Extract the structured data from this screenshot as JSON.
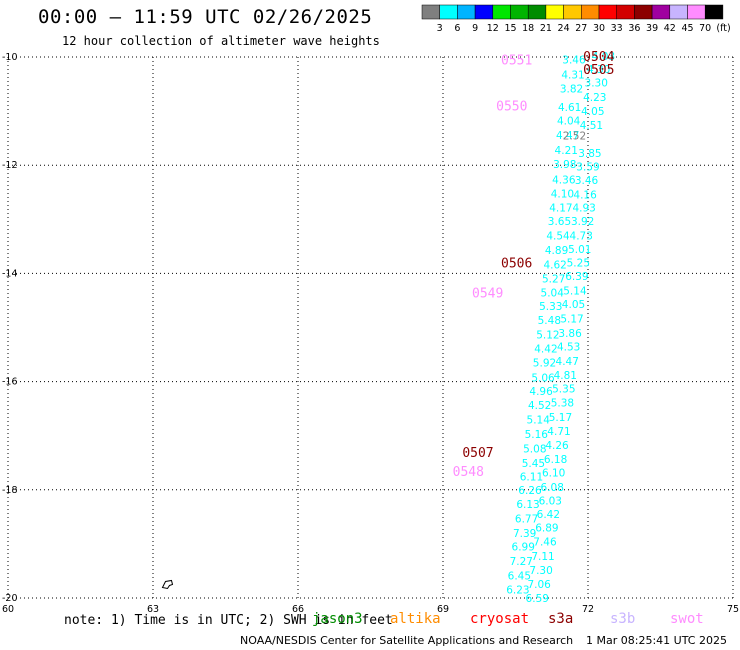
{
  "header": {
    "title": "00:00 – 11:59 UTC 02/26/2025",
    "subtitle": "12 hour collection of altimeter wave heights"
  },
  "colorbar": {
    "ticks": [
      "3",
      "6",
      "9",
      "12",
      "15",
      "18",
      "21",
      "24",
      "27",
      "30",
      "33",
      "36",
      "39",
      "42",
      "45",
      "70"
    ],
    "unit": "(ft)",
    "colors": [
      "#7f7f7f",
      "#00ffff",
      "#00b4ff",
      "#0000ff",
      "#00e600",
      "#00b400",
      "#008c00",
      "#ffff00",
      "#ffc800",
      "#ff8c00",
      "#ff0000",
      "#d20000",
      "#8c0000",
      "#a000a0",
      "#c8b4ff",
      "#ff8cff",
      "#000000"
    ]
  },
  "map": {
    "lon_ticks": [
      "60",
      "63",
      "66",
      "69",
      "72",
      "75"
    ],
    "lat_ticks": [
      "-10",
      "-12",
      "-14",
      "-16",
      "-18",
      "-20"
    ],
    "lon_range": [
      60,
      75
    ],
    "lat_range": [
      -20,
      -10
    ],
    "grid": "dotted",
    "island_label": "",
    "pass_labels": [
      {
        "text": "0504",
        "lon": 71.9,
        "lat": -9.98,
        "color": "#8c0000"
      },
      {
        "text": "0505",
        "lon": 71.9,
        "lat": -10.22,
        "color": "#8c0000"
      },
      {
        "text": "0551",
        "lon": 70.2,
        "lat": -10.05,
        "color": "#ff8cff"
      },
      {
        "text": "0550",
        "lon": 70.1,
        "lat": -10.9,
        "color": "#ff8cff"
      },
      {
        "text": "0506",
        "lon": 70.2,
        "lat": -13.8,
        "color": "#8c0000"
      },
      {
        "text": "0549",
        "lon": 69.6,
        "lat": -14.35,
        "color": "#ff8cff"
      },
      {
        "text": "0507",
        "lon": 69.4,
        "lat": -17.3,
        "color": "#8c0000"
      },
      {
        "text": "0548",
        "lon": 69.2,
        "lat": -17.65,
        "color": "#ff8cff"
      }
    ],
    "track_a": [
      {
        "lon": 71.71,
        "lat": -10.05,
        "v": "3.46"
      },
      {
        "lon": 71.69,
        "lat": -10.32,
        "v": "4.31"
      },
      {
        "lon": 71.66,
        "lat": -10.58,
        "v": "3.82"
      },
      {
        "lon": 71.62,
        "lat": -10.92,
        "v": "4.61"
      },
      {
        "lon": 71.6,
        "lat": -11.17,
        "v": "4.04"
      },
      {
        "lon": 71.58,
        "lat": -11.44,
        "v": "4.47"
      },
      {
        "lon": 71.55,
        "lat": -11.72,
        "v": "4.21"
      },
      {
        "lon": 71.52,
        "lat": -11.98,
        "v": "3.98"
      },
      {
        "lon": 71.5,
        "lat": -12.26,
        "v": "4.36"
      },
      {
        "lon": 71.47,
        "lat": -12.52,
        "v": "4.10"
      },
      {
        "lon": 71.44,
        "lat": -12.78,
        "v": "4.17"
      },
      {
        "lon": 71.41,
        "lat": -13.03,
        "v": "3.65"
      },
      {
        "lon": 71.38,
        "lat": -13.3,
        "v": "4.54"
      },
      {
        "lon": 71.35,
        "lat": -13.57,
        "v": "4.89"
      },
      {
        "lon": 71.32,
        "lat": -13.84,
        "v": "4.62"
      },
      {
        "lon": 71.29,
        "lat": -14.09,
        "v": "5.27"
      },
      {
        "lon": 71.26,
        "lat": -14.35,
        "v": "5.04"
      },
      {
        "lon": 71.23,
        "lat": -14.6,
        "v": "5.33"
      },
      {
        "lon": 71.2,
        "lat": -14.86,
        "v": "5.48"
      },
      {
        "lon": 71.17,
        "lat": -15.13,
        "v": "5.12"
      },
      {
        "lon": 71.13,
        "lat": -15.39,
        "v": "4.42"
      },
      {
        "lon": 71.1,
        "lat": -15.65,
        "v": "5.92"
      },
      {
        "lon": 71.07,
        "lat": -15.92,
        "v": "5.06"
      },
      {
        "lon": 71.03,
        "lat": -16.17,
        "v": "4.96"
      },
      {
        "lon": 71.0,
        "lat": -16.43,
        "v": "4.52"
      },
      {
        "lon": 70.97,
        "lat": -16.7,
        "v": "5.14"
      },
      {
        "lon": 70.93,
        "lat": -16.97,
        "v": "5.16"
      },
      {
        "lon": 70.9,
        "lat": -17.24,
        "v": "5.08"
      },
      {
        "lon": 70.87,
        "lat": -17.5,
        "v": "5.45"
      },
      {
        "lon": 70.83,
        "lat": -17.75,
        "v": "6.11"
      },
      {
        "lon": 70.8,
        "lat": -18.0,
        "v": "6.26"
      },
      {
        "lon": 70.76,
        "lat": -18.26,
        "v": "6.13"
      },
      {
        "lon": 70.73,
        "lat": -18.53,
        "v": "6.77"
      },
      {
        "lon": 70.69,
        "lat": -18.8,
        "v": "7.39"
      },
      {
        "lon": 70.66,
        "lat": -19.05,
        "v": "6.99"
      },
      {
        "lon": 70.62,
        "lat": -19.32,
        "v": "7.27"
      },
      {
        "lon": 70.58,
        "lat": -19.58,
        "v": "6.45"
      },
      {
        "lon": 70.55,
        "lat": -19.84,
        "v": "6.23"
      }
    ],
    "track_b": [
      {
        "lon": 72.32,
        "lat": -9.98,
        "v": "4.03"
      },
      {
        "lon": 72.22,
        "lat": -10.22,
        "v": "4.30"
      },
      {
        "lon": 72.17,
        "lat": -10.47,
        "v": "3.30"
      },
      {
        "lon": 72.14,
        "lat": -10.74,
        "v": "4.23"
      },
      {
        "lon": 72.1,
        "lat": -11.0,
        "v": "4.05"
      },
      {
        "lon": 72.07,
        "lat": -11.26,
        "v": "4.51"
      },
      {
        "lon": 72.04,
        "lat": -11.77,
        "v": "3.85"
      },
      {
        "lon": 72.0,
        "lat": -12.02,
        "v": "3.59"
      },
      {
        "lon": 71.97,
        "lat": -12.27,
        "v": "3.46"
      },
      {
        "lon": 71.94,
        "lat": -12.54,
        "v": "4.16"
      },
      {
        "lon": 71.92,
        "lat": -12.78,
        "v": "4.93"
      },
      {
        "lon": 71.89,
        "lat": -13.03,
        "v": "3.92"
      },
      {
        "lon": 71.86,
        "lat": -13.3,
        "v": "4.73"
      },
      {
        "lon": 71.83,
        "lat": -13.55,
        "v": "5.01"
      },
      {
        "lon": 71.8,
        "lat": -13.8,
        "v": "5.25"
      },
      {
        "lon": 71.77,
        "lat": -14.05,
        "v": "6.39"
      },
      {
        "lon": 71.73,
        "lat": -14.32,
        "v": "5.14"
      },
      {
        "lon": 71.7,
        "lat": -14.57,
        "v": "4.05"
      },
      {
        "lon": 71.67,
        "lat": -14.83,
        "v": "5.17"
      },
      {
        "lon": 71.63,
        "lat": -15.1,
        "v": "3.86"
      },
      {
        "lon": 71.6,
        "lat": -15.35,
        "v": "4.53"
      },
      {
        "lon": 71.57,
        "lat": -15.62,
        "v": "4.47"
      },
      {
        "lon": 71.53,
        "lat": -15.88,
        "v": "4.81"
      },
      {
        "lon": 71.5,
        "lat": -16.13,
        "v": "5.35"
      },
      {
        "lon": 71.47,
        "lat": -16.39,
        "v": "5.38"
      },
      {
        "lon": 71.43,
        "lat": -16.65,
        "v": "5.17"
      },
      {
        "lon": 71.4,
        "lat": -16.91,
        "v": "4.71"
      },
      {
        "lon": 71.36,
        "lat": -17.17,
        "v": "4.26"
      },
      {
        "lon": 71.33,
        "lat": -17.43,
        "v": "6.18"
      },
      {
        "lon": 71.29,
        "lat": -17.68,
        "v": "6.10"
      },
      {
        "lon": 71.26,
        "lat": -17.95,
        "v": "6.08"
      },
      {
        "lon": 71.22,
        "lat": -18.2,
        "v": "6.03"
      },
      {
        "lon": 71.18,
        "lat": -18.45,
        "v": "6.42"
      },
      {
        "lon": 71.15,
        "lat": -18.7,
        "v": "6.89"
      },
      {
        "lon": 71.11,
        "lat": -18.96,
        "v": "7.46"
      },
      {
        "lon": 71.07,
        "lat": -19.22,
        "v": "7.11"
      },
      {
        "lon": 71.03,
        "lat": -19.48,
        "v": "7.30"
      },
      {
        "lon": 70.99,
        "lat": -19.74,
        "v": "7.06"
      },
      {
        "lon": 70.95,
        "lat": -20.0,
        "v": "6.59"
      }
    ],
    "track_c": [
      {
        "lon": 71.72,
        "lat": -11.45,
        "v": "2.52"
      }
    ]
  },
  "note": "note: 1) Time is in UTC; 2) SWH is in feet",
  "legend": [
    {
      "name": "jason3",
      "color": "#008c00"
    },
    {
      "name": "altika",
      "color": "#ff8c00"
    },
    {
      "name": "cryosat",
      "color": "#ff0000"
    },
    {
      "name": "s3a",
      "color": "#8c0000"
    },
    {
      "name": "s3b",
      "color": "#c8b4ff"
    },
    {
      "name": "swot",
      "color": "#ff8cff"
    }
  ],
  "footer": {
    "credit": "NOAA/NESDIS Center for Satellite Applications and Research",
    "timestamp": "1 Mar 08:25:41 UTC 2025"
  }
}
